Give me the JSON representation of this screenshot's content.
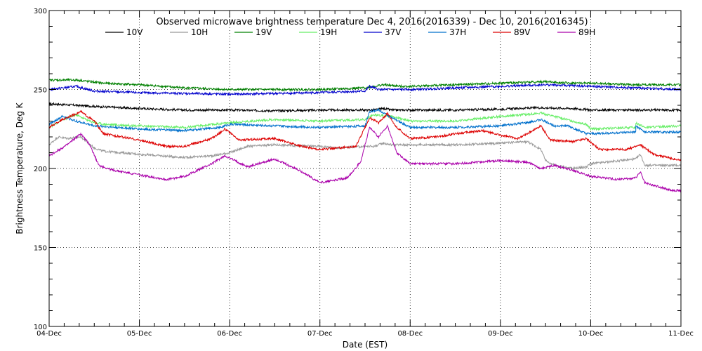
{
  "chart_data": {
    "type": "line",
    "title": "Observed microwave brightness temperature Dec  4, 2016(2016339) - Dec 10, 2016(2016345)",
    "xlabel": "Date (EST)",
    "ylabel": "Brightness Temperature, Deg K",
    "ylim": [
      100,
      300
    ],
    "xlim": [
      0,
      7
    ],
    "x_tick_labels": [
      "04-Dec",
      "05-Dec",
      "06-Dec",
      "07-Dec",
      "08-Dec",
      "09-Dec",
      "10-Dec",
      "11-Dec"
    ],
    "y_ticks": [
      100,
      150,
      200,
      250,
      300
    ],
    "grid": true,
    "legend_position": "top",
    "series": [
      {
        "name": "10V",
        "color": "#000000",
        "points": [
          [
            0,
            241
          ],
          [
            0.3,
            240
          ],
          [
            0.6,
            239
          ],
          [
            1,
            238
          ],
          [
            1.5,
            237
          ],
          [
            2,
            237
          ],
          [
            2.5,
            236.5
          ],
          [
            3,
            237
          ],
          [
            3.6,
            237
          ],
          [
            3.7,
            238
          ],
          [
            3.8,
            237
          ],
          [
            4,
            237
          ],
          [
            4.5,
            237
          ],
          [
            5,
            237.5
          ],
          [
            5.4,
            238.5
          ],
          [
            5.8,
            238
          ],
          [
            6,
            237
          ],
          [
            6.5,
            237
          ],
          [
            7,
            237
          ]
        ]
      },
      {
        "name": "10H",
        "color": "#999999",
        "points": [
          [
            0,
            215
          ],
          [
            0.1,
            220
          ],
          [
            0.2,
            219
          ],
          [
            0.35,
            220
          ],
          [
            0.5,
            213
          ],
          [
            0.6,
            211
          ],
          [
            1,
            209
          ],
          [
            1.5,
            207
          ],
          [
            1.8,
            208
          ],
          [
            2,
            210
          ],
          [
            2.2,
            214
          ],
          [
            2.5,
            215
          ],
          [
            3,
            214
          ],
          [
            3.2,
            213
          ],
          [
            3.5,
            214
          ],
          [
            3.6,
            214
          ],
          [
            3.7,
            216
          ],
          [
            3.8,
            215
          ],
          [
            4,
            215
          ],
          [
            4.5,
            215
          ],
          [
            5,
            216
          ],
          [
            5.3,
            217
          ],
          [
            5.45,
            212
          ],
          [
            5.5,
            205
          ],
          [
            5.6,
            202
          ],
          [
            5.8,
            200
          ],
          [
            5.95,
            201
          ],
          [
            6,
            203
          ],
          [
            6.5,
            206
          ],
          [
            6.55,
            209
          ],
          [
            6.6,
            202
          ],
          [
            7,
            202
          ]
        ]
      },
      {
        "name": "19V",
        "color": "#008000",
        "points": [
          [
            0,
            256
          ],
          [
            0.3,
            256
          ],
          [
            0.6,
            254
          ],
          [
            1,
            253
          ],
          [
            1.5,
            251
          ],
          [
            2,
            250
          ],
          [
            2.5,
            250
          ],
          [
            3,
            250
          ],
          [
            3.5,
            251
          ],
          [
            3.6,
            252
          ],
          [
            3.7,
            253
          ],
          [
            3.9,
            252
          ],
          [
            4,
            252
          ],
          [
            4.5,
            253
          ],
          [
            5,
            254
          ],
          [
            5.5,
            255
          ],
          [
            5.8,
            254
          ],
          [
            6,
            254
          ],
          [
            6.5,
            253
          ],
          [
            7,
            253
          ]
        ]
      },
      {
        "name": "19H",
        "color": "#66ee66",
        "points": [
          [
            0,
            226
          ],
          [
            0.15,
            231
          ],
          [
            0.3,
            234
          ],
          [
            0.45,
            230
          ],
          [
            0.6,
            228
          ],
          [
            1,
            227
          ],
          [
            1.5,
            226
          ],
          [
            2,
            229
          ],
          [
            2.5,
            231
          ],
          [
            3,
            230
          ],
          [
            3.5,
            231
          ],
          [
            3.6,
            234
          ],
          [
            3.8,
            233
          ],
          [
            4,
            230
          ],
          [
            4.5,
            230
          ],
          [
            5,
            233
          ],
          [
            5.45,
            235
          ],
          [
            5.6,
            233
          ],
          [
            5.8,
            230
          ],
          [
            5.95,
            228
          ],
          [
            6,
            225
          ],
          [
            6.5,
            226
          ],
          [
            6.5,
            229
          ],
          [
            6.6,
            226
          ],
          [
            7,
            227
          ]
        ]
      },
      {
        "name": "37V",
        "color": "#0000cc",
        "points": [
          [
            0,
            250
          ],
          [
            0.3,
            252
          ],
          [
            0.5,
            249
          ],
          [
            1,
            248
          ],
          [
            1.5,
            247.5
          ],
          [
            2,
            247
          ],
          [
            2.5,
            247.5
          ],
          [
            3,
            248
          ],
          [
            3.5,
            249
          ],
          [
            3.55,
            252
          ],
          [
            3.65,
            250
          ],
          [
            3.8,
            250
          ],
          [
            4,
            250
          ],
          [
            4.5,
            251
          ],
          [
            5,
            252
          ],
          [
            5.5,
            253
          ],
          [
            6,
            252
          ],
          [
            6.5,
            251
          ],
          [
            7,
            250
          ]
        ]
      },
      {
        "name": "37H",
        "color": "#0070cc",
        "points": [
          [
            0,
            228
          ],
          [
            0.15,
            233
          ],
          [
            0.3,
            230
          ],
          [
            0.5,
            227
          ],
          [
            1,
            225
          ],
          [
            1.5,
            224
          ],
          [
            1.9,
            226
          ],
          [
            2,
            228
          ],
          [
            2.5,
            227
          ],
          [
            3,
            226
          ],
          [
            3.5,
            227
          ],
          [
            3.55,
            236
          ],
          [
            3.65,
            237
          ],
          [
            3.8,
            232
          ],
          [
            4,
            226
          ],
          [
            4.5,
            226
          ],
          [
            5,
            227
          ],
          [
            5.3,
            229
          ],
          [
            5.45,
            231
          ],
          [
            5.6,
            227
          ],
          [
            5.75,
            227
          ],
          [
            5.95,
            222
          ],
          [
            6,
            222
          ],
          [
            6.5,
            223
          ],
          [
            6.5,
            227
          ],
          [
            6.6,
            223
          ],
          [
            7,
            223
          ]
        ]
      },
      {
        "name": "89V",
        "color": "#dd0000",
        "points": [
          [
            0,
            226
          ],
          [
            0.15,
            231
          ],
          [
            0.35,
            236
          ],
          [
            0.5,
            230
          ],
          [
            0.6,
            222
          ],
          [
            1,
            218
          ],
          [
            1.3,
            214
          ],
          [
            1.5,
            214
          ],
          [
            1.8,
            219
          ],
          [
            1.95,
            225
          ],
          [
            2.1,
            218
          ],
          [
            2.5,
            219
          ],
          [
            2.8,
            214
          ],
          [
            3,
            212
          ],
          [
            3.4,
            214
          ],
          [
            3.55,
            232
          ],
          [
            3.65,
            229
          ],
          [
            3.75,
            235
          ],
          [
            3.85,
            226
          ],
          [
            4,
            219
          ],
          [
            4.3,
            220
          ],
          [
            4.5,
            222
          ],
          [
            4.8,
            224
          ],
          [
            5,
            221
          ],
          [
            5.2,
            219
          ],
          [
            5.45,
            227
          ],
          [
            5.55,
            218
          ],
          [
            5.8,
            217
          ],
          [
            5.95,
            219
          ],
          [
            6.1,
            212
          ],
          [
            6.4,
            212
          ],
          [
            6.55,
            215
          ],
          [
            6.7,
            209
          ],
          [
            7,
            205
          ]
        ]
      },
      {
        "name": "89H",
        "color": "#aa00aa",
        "points": [
          [
            0,
            208
          ],
          [
            0.2,
            215
          ],
          [
            0.35,
            222
          ],
          [
            0.45,
            215
          ],
          [
            0.55,
            202
          ],
          [
            0.7,
            199
          ],
          [
            1,
            196
          ],
          [
            1.3,
            193
          ],
          [
            1.5,
            195
          ],
          [
            1.8,
            203
          ],
          [
            1.95,
            208
          ],
          [
            2.2,
            201
          ],
          [
            2.5,
            206
          ],
          [
            2.8,
            198
          ],
          [
            3,
            191
          ],
          [
            3.3,
            194
          ],
          [
            3.45,
            204
          ],
          [
            3.55,
            226
          ],
          [
            3.65,
            220
          ],
          [
            3.75,
            227
          ],
          [
            3.85,
            210
          ],
          [
            4,
            203
          ],
          [
            4.5,
            203
          ],
          [
            5,
            205
          ],
          [
            5.3,
            204
          ],
          [
            5.45,
            200
          ],
          [
            5.6,
            202
          ],
          [
            5.8,
            199
          ],
          [
            6,
            195
          ],
          [
            6.3,
            193
          ],
          [
            6.5,
            194
          ],
          [
            6.55,
            198
          ],
          [
            6.6,
            191
          ],
          [
            6.9,
            186
          ],
          [
            7,
            186
          ]
        ]
      }
    ]
  }
}
